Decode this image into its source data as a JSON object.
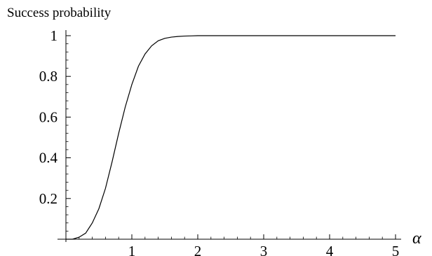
{
  "chart_data": {
    "type": "line",
    "title": "",
    "xlabel": "α",
    "ylabel": "Success probability",
    "xlim": [
      0,
      5
    ],
    "ylim": [
      0,
      1
    ],
    "x_ticks": [
      1,
      2,
      3,
      4,
      5
    ],
    "x_tick_labels": [
      "1",
      "2",
      "3",
      "4",
      "5"
    ],
    "y_ticks": [
      0.2,
      0.4,
      0.6,
      0.8,
      1
    ],
    "y_tick_labels": [
      "0.2",
      "0.4",
      "0.6",
      "0.8",
      "1"
    ],
    "grid": false,
    "legend": "none",
    "line_color": "#000000",
    "series": [
      {
        "x": [
          0,
          0.1,
          0.2,
          0.3,
          0.4,
          0.5,
          0.6,
          0.7,
          0.8,
          0.9,
          1.0,
          1.1,
          1.2,
          1.3,
          1.4,
          1.5,
          1.6,
          1.7,
          1.8,
          1.9,
          2.0,
          2.5,
          3.0,
          3.5,
          4.0,
          4.5,
          5.0
        ],
        "values": [
          0,
          0.0,
          0.01,
          0.03,
          0.08,
          0.15,
          0.25,
          0.38,
          0.52,
          0.65,
          0.76,
          0.85,
          0.91,
          0.95,
          0.975,
          0.987,
          0.993,
          0.996,
          0.998,
          0.999,
          1.0,
          1.0,
          1.0,
          1.0,
          1.0,
          1.0,
          1.0
        ]
      }
    ]
  }
}
